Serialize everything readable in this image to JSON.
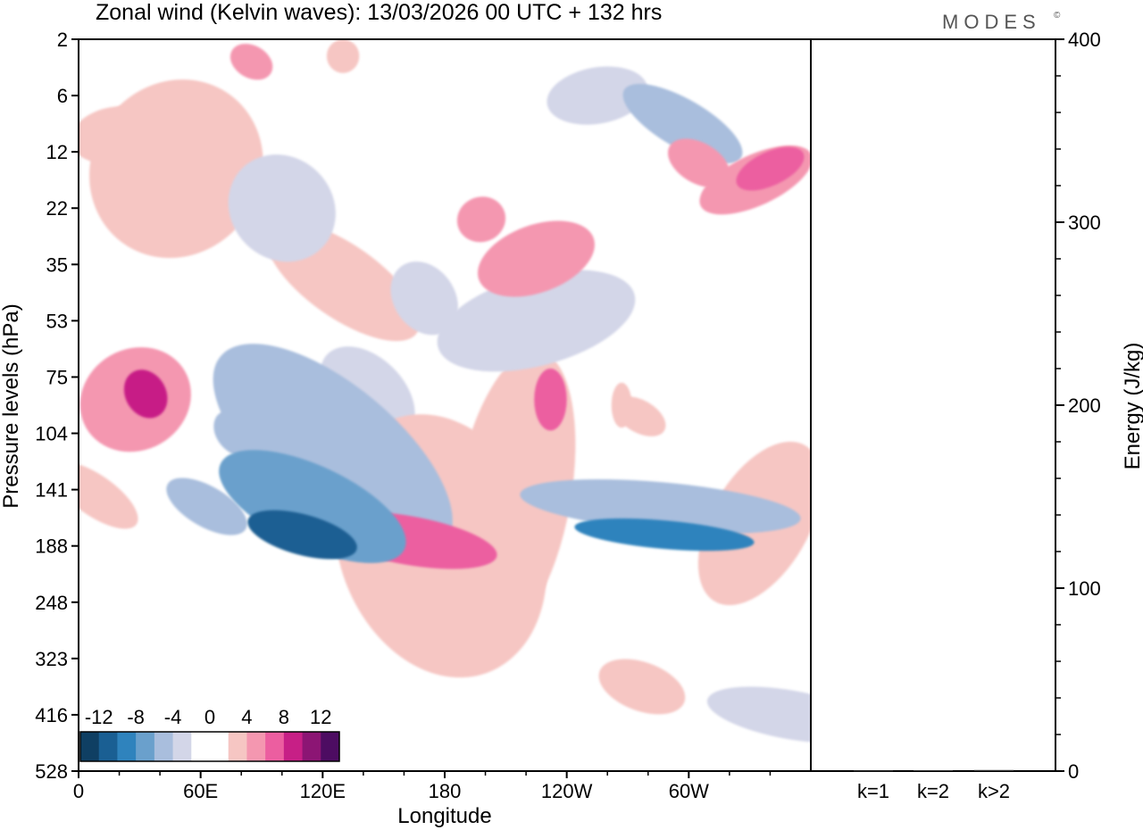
{
  "title": "Zonal wind (Kelvin waves):  13/03/2026  00 UTC  + 132 hrs",
  "logo": "MODES",
  "logo_mark": "©",
  "colors": {
    "neg": [
      "#0f3f63",
      "#1a5f93",
      "#2f83bd",
      "#6aa0cc",
      "#a9bedd",
      "#d3d6e8"
    ],
    "pos": [
      "#f6c6c3",
      "#f497b0",
      "#ec5ea0",
      "#c71f86",
      "#8c1574",
      "#4d0c62"
    ],
    "mid": "#ffffff"
  },
  "chart_data": [
    {
      "type": "heatmap",
      "title": "Zonal wind (Kelvin waves):  13/03/2026  00 UTC  + 132 hrs",
      "xlabel": "Longitude",
      "ylabel": "Pressure levels (hPa)",
      "x_ticks": [
        "0",
        "60E",
        "120E",
        "180",
        "120W",
        "60W"
      ],
      "y_ticks": [
        "2",
        "6",
        "12",
        "22",
        "35",
        "53",
        "75",
        "104",
        "141",
        "188",
        "248",
        "323",
        "416",
        "528"
      ],
      "colorbar": {
        "labels": [
          "-12",
          "-8",
          "-4",
          "0",
          "4",
          "8",
          "12"
        ],
        "levels": [
          -14,
          -12,
          -10,
          -8,
          -6,
          -4,
          -2,
          2,
          4,
          6,
          8,
          10,
          12,
          14
        ]
      },
      "features": [
        {
          "lon": 33,
          "lev": 6.3,
          "rx": 10,
          "ry": 0.45,
          "rot": -30,
          "v": 9
        },
        {
          "lon": 28,
          "lev": 6.4,
          "rx": 28,
          "ry": 0.9,
          "rot": -30,
          "v": 5
        },
        {
          "lon": 8,
          "lev": 8.1,
          "rx": 10,
          "ry": 0.9,
          "rot": -55,
          "v": 3
        },
        {
          "lon": 77,
          "lev": 7.0,
          "rx": 9,
          "ry": 0.45,
          "rot": -40,
          "v": -4
        },
        {
          "lon": 63,
          "lev": 8.3,
          "rx": 10,
          "ry": 0.8,
          "rot": -60,
          "v": -4
        },
        {
          "lon": 110,
          "lev": 8.8,
          "rx": 10,
          "ry": 1.0,
          "rot": -75,
          "v": -10
        },
        {
          "lon": 115,
          "lev": 8.3,
          "rx": 20,
          "ry": 1.8,
          "rot": -65,
          "v": -7
        },
        {
          "lon": 125,
          "lev": 7.3,
          "rx": 32,
          "ry": 2.6,
          "rot": -50,
          "v": -4
        },
        {
          "lon": 142,
          "lev": 6.3,
          "rx": 18,
          "ry": 1.0,
          "rot": -45,
          "v": -3
        },
        {
          "lon": 162,
          "lev": 8.9,
          "rx": 12,
          "ry": 1.6,
          "rot": -80,
          "v": 6
        },
        {
          "lon": 178,
          "lev": 9.0,
          "rx": 50,
          "ry": 2.4,
          "rot": -20,
          "v": 3
        },
        {
          "lon": 214,
          "lev": 8.1,
          "rx": 28,
          "ry": 2.6,
          "rot": 10,
          "v": 3
        },
        {
          "lon": 232,
          "lev": 6.4,
          "rx": 8,
          "ry": 0.55,
          "rot": 0,
          "v": 6
        },
        {
          "lon": 130,
          "lev": 4.3,
          "rx": 18,
          "ry": 1.6,
          "rot": -55,
          "v": 3
        },
        {
          "lon": 170,
          "lev": 4.6,
          "rx": 15,
          "ry": 0.7,
          "rot": -35,
          "v": -3
        },
        {
          "lon": 288,
          "lev": 8.8,
          "rx": 7,
          "ry": 1.6,
          "rot": -85,
          "v": -8
        },
        {
          "lon": 286,
          "lev": 8.3,
          "rx": 12,
          "ry": 2.5,
          "rot": -85,
          "v": -4
        },
        {
          "lon": 335,
          "lev": 8.6,
          "rx": 24,
          "ry": 1.6,
          "rot": 30,
          "v": 3
        },
        {
          "lon": 277,
          "lev": 11.5,
          "rx": 12,
          "ry": 0.8,
          "rot": -70,
          "v": 3
        },
        {
          "lon": 225,
          "lev": 3.9,
          "rx": 30,
          "ry": 0.6,
          "rot": -20,
          "v": 4
        },
        {
          "lon": 198,
          "lev": 3.2,
          "rx": 12,
          "ry": 0.4,
          "rot": -20,
          "v": 5
        },
        {
          "lon": 225,
          "lev": 5.0,
          "rx": 50,
          "ry": 0.8,
          "rot": -15,
          "v": -3
        },
        {
          "lon": 333,
          "lev": 2.5,
          "rx": 30,
          "ry": 0.45,
          "rot": -25,
          "v": 5
        },
        {
          "lon": 340,
          "lev": 2.3,
          "rx": 18,
          "ry": 0.3,
          "rot": -25,
          "v": 7
        },
        {
          "lon": 48,
          "lev": 2.3,
          "rx": 45,
          "ry": 1.5,
          "rot": -55,
          "v": 3
        },
        {
          "lon": 100,
          "lev": 3.0,
          "rx": 25,
          "ry": 1.0,
          "rot": -45,
          "v": -3
        },
        {
          "lon": 18,
          "lev": 1.7,
          "rx": 22,
          "ry": 0.5,
          "rot": -10,
          "v": 3
        },
        {
          "lon": 297,
          "lev": 1.5,
          "rx": 12,
          "ry": 1.2,
          "rot": -60,
          "v": -4
        },
        {
          "lon": 305,
          "lev": 2.2,
          "rx": 10,
          "ry": 0.6,
          "rot": -60,
          "v": 4
        },
        {
          "lon": 255,
          "lev": 1.0,
          "rx": 25,
          "ry": 0.5,
          "rot": -10,
          "v": -3
        },
        {
          "lon": 130,
          "lev": 0.3,
          "rx": 8,
          "ry": 0.3,
          "rot": 0,
          "v": 3
        },
        {
          "lon": 85,
          "lev": 0.4,
          "rx": 8,
          "ry": 0.4,
          "rot": -60,
          "v": 4
        },
        {
          "lon": 267,
          "lev": 6.5,
          "rx": 5,
          "ry": 0.4,
          "rot": 0,
          "v": 3
        },
        {
          "lon": 350,
          "lev": 12.0,
          "rx": 12,
          "ry": 1.5,
          "rot": -80,
          "v": -3
        },
        {
          "lon": 276,
          "lev": 6.7,
          "rx": 8,
          "ry": 0.5,
          "rot": -60,
          "v": 3
        }
      ],
      "x_domain": [
        0,
        360
      ],
      "levels_index_range": [
        0,
        13
      ]
    },
    {
      "type": "bar",
      "categories": [
        "k=1",
        "k=2",
        "k>2"
      ],
      "values": [
        0.3,
        0.5,
        0.6
      ],
      "ylabel": "Energy (J/kg)",
      "ylim": [
        0,
        400
      ],
      "y_ticks": [
        "0",
        "100",
        "200",
        "300",
        "400"
      ]
    }
  ]
}
